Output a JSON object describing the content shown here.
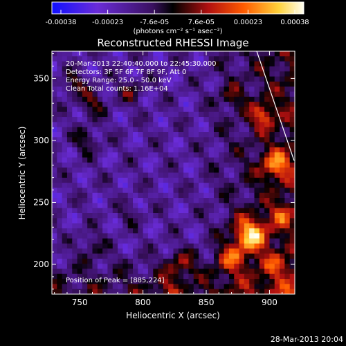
{
  "chart_data": {
    "type": "heatmap",
    "title": "Reconstructed RHESSI Image",
    "xlabel": "Heliocentric X (arcsec)",
    "ylabel": "Heliocentric Y (arcsec)",
    "xlim": [
      728,
      920
    ],
    "ylim": [
      176,
      372
    ],
    "x_ticks": [
      750,
      800,
      850,
      900
    ],
    "y_ticks": [
      200,
      250,
      300,
      350
    ],
    "colorbar": {
      "ticks": [
        "-0.00038",
        "-0.00023",
        "-7.6e-05",
        "7.6e-05",
        "0.00023",
        "0.00038"
      ],
      "label": "(photons cm⁻² s⁻¹ asec⁻²)",
      "colors": [
        "#1010ff",
        "#6a2cd8",
        "#3a1060",
        "#000000",
        "#b01010",
        "#ff5a00",
        "#ffd23a",
        "#fffff2"
      ]
    },
    "annotations": [
      "20-Mar-2013 22:40:40.000 to 22:45:30.000",
      "Detectors: 3F 5F 6F 7F 8F 9F, Att 0",
      "Energy Range: 25.0 - 50.0 keV",
      "Clean     Total counts: 1.16E+04"
    ],
    "peak_label": "Position of Peak = [885,224]",
    "peak": [
      885,
      224
    ],
    "timestamp": "28-Mar-2013 20:04"
  }
}
